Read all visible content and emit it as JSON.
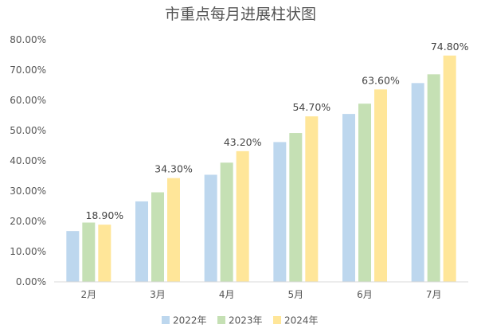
{
  "chart_data": {
    "type": "bar",
    "title": "市重点每月进展柱状图",
    "categories": [
      "2月",
      "3月",
      "4月",
      "5月",
      "6月",
      "7月"
    ],
    "series": [
      {
        "name": "2022年",
        "color": "#bdd7ee",
        "values": [
          16.8,
          26.6,
          35.4,
          46.2,
          55.5,
          65.7
        ]
      },
      {
        "name": "2023年",
        "color": "#c5e0b4",
        "values": [
          19.6,
          29.6,
          39.4,
          49.2,
          58.9,
          68.6
        ]
      },
      {
        "name": "2024年",
        "color": "#ffe699",
        "values": [
          18.9,
          34.3,
          43.2,
          54.7,
          63.6,
          74.8
        ]
      }
    ],
    "data_labels": {
      "series": "2024年",
      "texts": [
        "18.90%",
        "34.30%",
        "43.20%",
        "54.70%",
        "63.60%",
        "74.80%"
      ]
    },
    "y_ticks": [
      "0.00%",
      "10.00%",
      "20.00%",
      "30.00%",
      "40.00%",
      "50.00%",
      "60.00%",
      "70.00%",
      "80.00%"
    ],
    "ylim": [
      0,
      80
    ],
    "grid": false,
    "legend_position": "bottom"
  }
}
